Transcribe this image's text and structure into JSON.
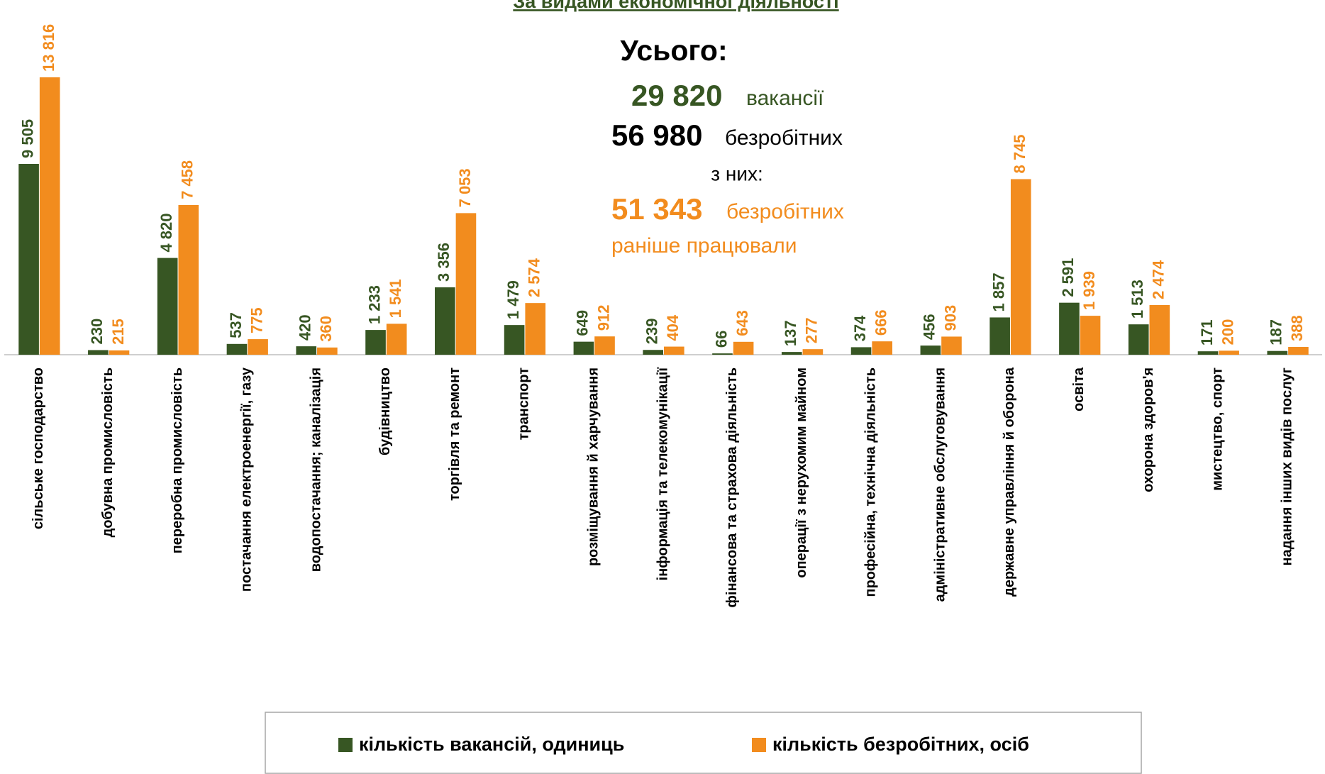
{
  "chart_data": {
    "type": "bar",
    "title": "За видами економічної діяльності",
    "annotations": {
      "total_label": "Усього:",
      "vacancies_number": "29 820",
      "vacancies_text": "вакансії",
      "unemployed_number": "56 980",
      "unemployed_text": "безробітних",
      "of_them": "з них:",
      "worked_number": "51 343",
      "worked_text": "безробітних",
      "worked_note": "раніше працювали"
    },
    "categories": [
      "сільське господарство",
      "добувна промисловість",
      "переробна промисловість",
      "постачання електроенергії, газу",
      "водопостачання; каналізація",
      "будівництво",
      "торгівля та ремонт",
      "транспорт",
      "розміщування й харчування",
      "інформація та телекомунікації",
      "фінансова та страхова діяльність",
      "операції з нерухомим майном",
      "професійна, технічна діяльність",
      "адміністративне обслуговування",
      "державне управління й оборона",
      "освіта",
      "охорона здоров'я",
      "мистецтво, спорт",
      "надання інших видів послуг"
    ],
    "series": [
      {
        "name": "кількість вакансій, одиниць",
        "color": "#375623",
        "values": [
          9505,
          230,
          4820,
          537,
          420,
          1233,
          3356,
          1479,
          649,
          239,
          66,
          137,
          374,
          456,
          1857,
          2591,
          1513,
          171,
          187
        ],
        "value_labels": [
          "9 505",
          "230",
          "4 820",
          "537",
          "420",
          "1 233",
          "3 356",
          "1 479",
          "649",
          "239",
          "66",
          "137",
          "374",
          "456",
          "1 857",
          "2 591",
          "1 513",
          "171",
          "187"
        ]
      },
      {
        "name": "кількість безробітних, осіб",
        "color": "#f28c1e",
        "values": [
          13816,
          215,
          7458,
          775,
          360,
          1541,
          7053,
          2574,
          912,
          404,
          643,
          277,
          666,
          903,
          8745,
          1939,
          2474,
          200,
          388
        ],
        "value_labels": [
          "13 816",
          "215",
          "7 458",
          "775",
          "360",
          "1 541",
          "7 053",
          "2 574",
          "912",
          "404",
          "643",
          "277",
          "666",
          "903",
          "8 745",
          "1 939",
          "2 474",
          "200",
          "388"
        ]
      }
    ]
  }
}
